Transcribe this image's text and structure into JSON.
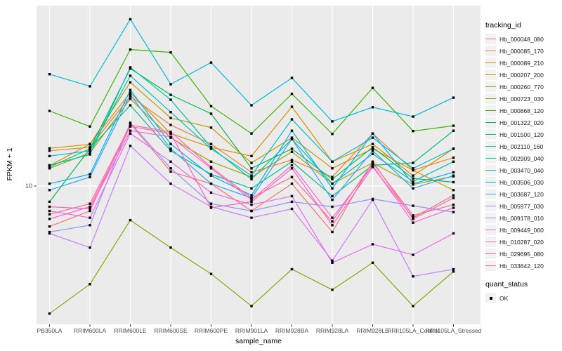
{
  "chart_data": {
    "type": "line",
    "title": "",
    "xlabel": "sample_name",
    "ylabel": "FPKM + 1",
    "x_categories": [
      "PB350LA",
      "RRIM600LA",
      "RRIM600LE",
      "RRIM600SE",
      "RRIM600PE",
      "RRIM901LA",
      "RRIM928BA",
      "RRIM928LA",
      "RRIM928LE",
      "RRII105LA_Control",
      "RRII105LA_Stressed"
    ],
    "y_axis": {
      "scale": "log10",
      "tick_labels": [
        "10"
      ],
      "range_approx": [
        1.8,
        97
      ],
      "gridlines": "white-on-gray"
    },
    "panel_background": "#EBEBEB",
    "gridline_color": "#FFFFFF",
    "marker": {
      "shape": "square",
      "color": "#000000",
      "meaning": "quant_status OK"
    },
    "legend": {
      "title": "tracking_id",
      "position": "right"
    },
    "quant_legend": {
      "title": "quant_status",
      "items": [
        {
          "label": "OK",
          "marker": "black-square"
        }
      ]
    },
    "series": [
      {
        "name": "Hb_000048_080",
        "color": "#F8766D",
        "values": [
          6.0,
          7.3,
          22.0,
          12.0,
          10.3,
          7.3,
          10.3,
          5.6,
          13.6,
          6.6,
          8.6
        ]
      },
      {
        "name": "Hb_000085_170",
        "color": "#EA8331",
        "values": [
          15.6,
          16.3,
          31.0,
          21.6,
          17.0,
          11.9,
          13.9,
          11.2,
          19.4,
          12.2,
          14.3
        ]
      },
      {
        "name": "Hb_000089_210",
        "color": "#D89000",
        "values": [
          12.9,
          17.0,
          32.5,
          19.4,
          16.3,
          14.6,
          27.2,
          13.6,
          17.0,
          11.4,
          16.0
        ]
      },
      {
        "name": "Hb_000207_200",
        "color": "#C09B00",
        "values": [
          16.1,
          16.9,
          37.0,
          23.6,
          20.9,
          13.4,
          18.4,
          12.5,
          16.0,
          12.2,
          9.5
        ]
      },
      {
        "name": "Hb_000260_770",
        "color": "#A3A500",
        "values": [
          12.5,
          15.2,
          30.0,
          18.4,
          13.6,
          11.2,
          15.4,
          10.3,
          13.4,
          10.2,
          11.3
        ]
      },
      {
        "name": "Hb_000723_030",
        "color": "#7CAE00",
        "values": [
          2.0,
          2.9,
          6.5,
          4.6,
          3.3,
          2.2,
          3.5,
          2.7,
          3.8,
          2.2,
          3.4
        ]
      },
      {
        "name": "Hb_000868_120",
        "color": "#39B600",
        "values": [
          25.8,
          21.2,
          56.0,
          54.0,
          27.4,
          19.4,
          32.0,
          19.3,
          34.5,
          20.0,
          21.4
        ]
      },
      {
        "name": "Hb_001322_020",
        "color": "#00BB4E",
        "values": [
          8.2,
          16.0,
          44.0,
          31.6,
          24.9,
          12.5,
          16.0,
          10.9,
          16.3,
          11.0,
          10.5
        ]
      },
      {
        "name": "Hb_001500_120",
        "color": "#00BF7D",
        "values": [
          12.7,
          16.0,
          27.7,
          15.6,
          11.6,
          9.7,
          13.6,
          8.8,
          13.0,
          13.4,
          20.1
        ]
      },
      {
        "name": "Hb_002110_160",
        "color": "#00C1A3",
        "values": [
          13.0,
          14.9,
          44.7,
          29.7,
          16.3,
          10.9,
          18.1,
          10.3,
          15.0,
          10.6,
          13.6
        ]
      },
      {
        "name": "Hb_002909_040",
        "color": "#00BFC4",
        "values": [
          14.6,
          15.6,
          40.2,
          25.4,
          16.0,
          11.4,
          23.2,
          13.6,
          18.4,
          12.5,
          16.0
        ]
      },
      {
        "name": "Hb_003470_040",
        "color": "#00BAE0",
        "values": [
          41.0,
          35.2,
          82.0,
          36.1,
          47.5,
          27.7,
          39.1,
          22.6,
          27.0,
          24.0,
          30.5
        ]
      },
      {
        "name": "Hb_003506_030",
        "color": "#00B0F6",
        "values": [
          10.3,
          11.6,
          33.6,
          17.0,
          11.4,
          8.9,
          20.1,
          9.7,
          19.4,
          10.3,
          11.9
        ]
      },
      {
        "name": "Hb_003687_120",
        "color": "#35A2FF",
        "values": [
          9.5,
          11.2,
          31.6,
          16.0,
          10.3,
          8.6,
          18.1,
          8.4,
          15.6,
          9.7,
          11.4
        ]
      },
      {
        "name": "Hb_005977_030",
        "color": "#9590FF",
        "values": [
          5.6,
          6.1,
          22.2,
          12.5,
          8.0,
          7.3,
          8.2,
          7.7,
          8.5,
          7.8,
          7.2
        ]
      },
      {
        "name": "Hb_009178_010",
        "color": "#C77CFF",
        "values": [
          5.5,
          4.6,
          16.6,
          10.3,
          7.7,
          6.7,
          7.5,
          3.9,
          8.4,
          3.2,
          3.5
        ]
      },
      {
        "name": "Hb_009449_060",
        "color": "#E76BF3",
        "values": [
          7.3,
          6.7,
          19.4,
          13.6,
          9.2,
          7.9,
          8.8,
          3.8,
          4.8,
          4.2,
          5.5
        ]
      },
      {
        "name": "Hb_010287_020",
        "color": "#FA62DB",
        "values": [
          7.7,
          7.5,
          20.1,
          18.6,
          12.5,
          8.4,
          13.0,
          6.7,
          12.9,
          6.3,
          7.6
        ]
      },
      {
        "name": "Hb_029695_080",
        "color": "#FF62BC",
        "values": [
          6.6,
          7.7,
          21.2,
          19.4,
          7.6,
          8.2,
          12.5,
          6.1,
          12.7,
          6.7,
          8.9
        ]
      },
      {
        "name": "Hb_033642_120",
        "color": "#FF6A98",
        "values": [
          7.0,
          8.0,
          21.6,
          19.8,
          12.7,
          8.6,
          11.2,
          6.4,
          13.4,
          6.9,
          7.9
        ]
      }
    ]
  }
}
